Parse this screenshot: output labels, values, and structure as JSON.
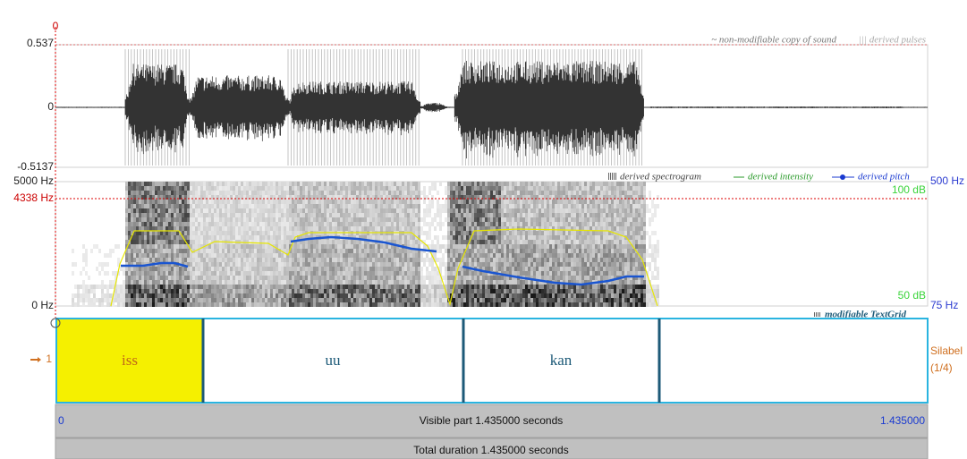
{
  "cursor": {
    "time": "0"
  },
  "sound": {
    "max": "0.537",
    "zero": "0",
    "min": "-0.5137",
    "legend_sound": "~ non-modifiable copy of sound",
    "legend_pulses": "||| derived pulses"
  },
  "analysis": {
    "legend_spectrogram": "derived spectrogram",
    "legend_intensity": "derived intensity",
    "legend_pitch": "derived pitch",
    "freq_max": "5000 Hz",
    "cursor_freq": "4338 Hz",
    "freq_min": "0 Hz",
    "intensity_max": "100 dB",
    "intensity_min": "50 dB",
    "pitch_max": "500 Hz",
    "pitch_min": "75 Hz"
  },
  "textgrid": {
    "legend": "modifiable TextGrid",
    "tier_number": "1",
    "tier_name": "Silabel",
    "tier_count": "(1/4)",
    "intervals": [
      "iss",
      "uu",
      "kan"
    ]
  },
  "footer": {
    "visible_start": "0",
    "visible_part": "Visible part 1.435000 seconds",
    "visible_end": "1.435000",
    "total": "Total duration 1.435000 seconds"
  }
}
